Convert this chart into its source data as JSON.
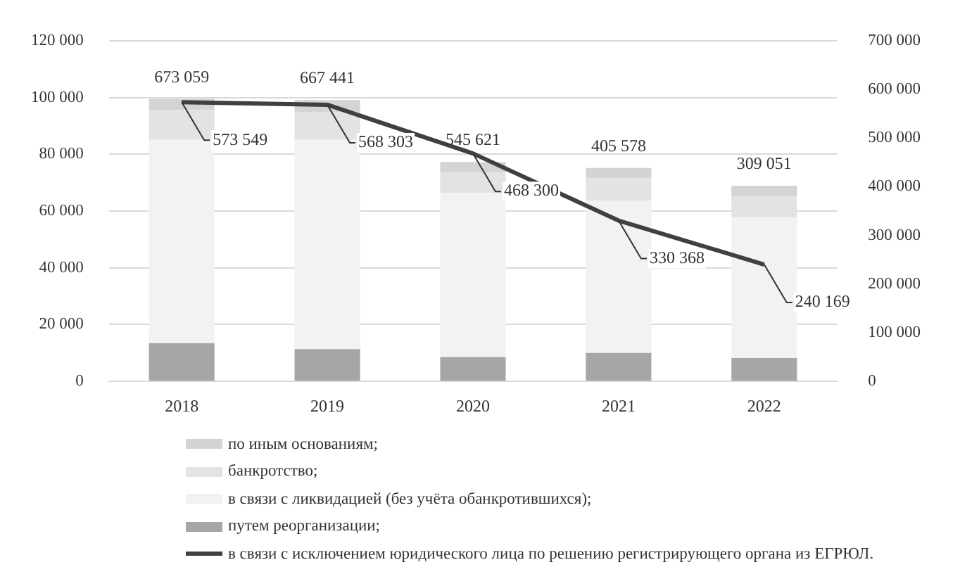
{
  "chart_data": {
    "type": "bar",
    "stacked": true,
    "categories": [
      "2018",
      "2019",
      "2020",
      "2021",
      "2022"
    ],
    "series": [
      {
        "name": "путем реорганизации;",
        "color": "#a6a6a6",
        "values": [
          13500,
          11400,
          8600,
          10000,
          8200
        ]
      },
      {
        "name": "в связи с ликвидацией (без учёта обанкротившихся);",
        "color": "#f2f2f2",
        "values": [
          71600,
          73700,
          57800,
          53700,
          49500
        ]
      },
      {
        "name": "банкротство;",
        "color": "#e3e3e3",
        "values": [
          10500,
          9800,
          7200,
          7900,
          7500
        ]
      },
      {
        "name": "по иным основаниям;",
        "color": "#d4d4d4",
        "values": [
          3900,
          4200,
          3700,
          3600,
          3700
        ]
      },
      {
        "name": "в связи с исключением юридического лица по решению регистрирующего органа из ЕГРЮЛ.",
        "type": "line",
        "axis": "y2",
        "color": "#404040",
        "values": [
          573549,
          568303,
          468300,
          330368,
          240169
        ],
        "value_labels": [
          "573 549",
          "568 303",
          "468 300",
          "330 368",
          "240 169"
        ]
      }
    ],
    "annotations": [
      {
        "text": "673 059",
        "x": "2018",
        "y": 99500
      },
      {
        "text": "667 441",
        "x": "2019",
        "y": 99100
      },
      {
        "text": "545 621",
        "x": "2020",
        "y": 77300
      },
      {
        "text": "405 578",
        "x": "2021",
        "y": 75200
      },
      {
        "text": "309 051",
        "x": "2022",
        "y": 68900
      }
    ],
    "ylim": [
      0,
      120000
    ],
    "yticks": [
      {
        "value": 0,
        "label": "0"
      },
      {
        "value": 20000,
        "label": "20 000"
      },
      {
        "value": 40000,
        "label": "40 000"
      },
      {
        "value": 60000,
        "label": "60 000"
      },
      {
        "value": 80000,
        "label": "80 000"
      },
      {
        "value": 100000,
        "label": "100 000"
      },
      {
        "value": 120000,
        "label": "120 000"
      }
    ],
    "y2lim": [
      0,
      700000
    ],
    "y2ticks": [
      {
        "value": 0,
        "label": "0"
      },
      {
        "value": 100000,
        "label": "100 000"
      },
      {
        "value": 200000,
        "label": "200 000"
      },
      {
        "value": 300000,
        "label": "300 000"
      },
      {
        "value": 400000,
        "label": "400 000"
      },
      {
        "value": 500000,
        "label": "500 000"
      },
      {
        "value": 600000,
        "label": "600 000"
      },
      {
        "value": 700000,
        "label": "700 000"
      }
    ],
    "grid": "y",
    "legend": "bottom",
    "marker": "none"
  }
}
